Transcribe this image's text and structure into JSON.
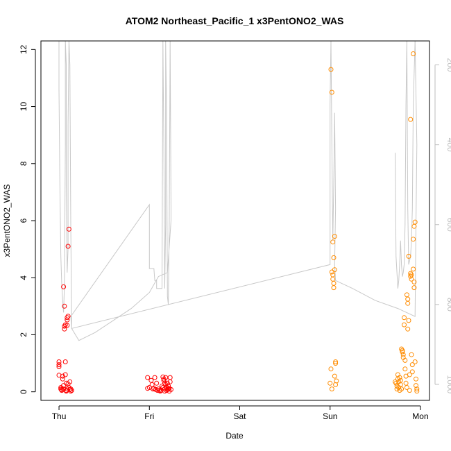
{
  "chart_data": {
    "type": "scatter",
    "title": "ATOM2 Northeast_Pacific_1 x3PentONO2_WAS",
    "xlabel": "Date",
    "ylabel": "x3PentONO2_WAS",
    "x_ticks": [
      "Thu",
      "Fri",
      "Sat",
      "Sun",
      "Mon"
    ],
    "y_ticks": [
      "0",
      "2",
      "4",
      "6",
      "8",
      "10",
      "12"
    ],
    "y_right_ticks": [
      "200",
      "400",
      "600",
      "800",
      "1000"
    ],
    "xlim_days": [
      -0.2,
      4.1
    ],
    "ylim": [
      -0.3,
      12.3
    ],
    "y_right_lim": [
      1040,
      140
    ],
    "y_right_reversed": true,
    "grid": false,
    "colors": {
      "series_1": "#ff0000",
      "series_2": "#ff8c00",
      "pressure_trace": "#c8c8c8",
      "right_axis": "#bdbdbd"
    },
    "series": [
      {
        "marker": "open-circle",
        "color": "#ff0000",
        "points": [
          [
            0.0,
            1.05
          ],
          [
            0.0,
            0.95
          ],
          [
            0.0,
            0.88
          ],
          [
            0.0,
            0.58
          ],
          [
            0.02,
            0.15
          ],
          [
            0.02,
            0.1
          ],
          [
            0.03,
            0.05
          ],
          [
            0.03,
            0.08
          ],
          [
            0.04,
            0.55
          ],
          [
            0.04,
            0.45
          ],
          [
            0.05,
            0.22
          ],
          [
            0.05,
            0.1
          ],
          [
            0.05,
            3.68
          ],
          [
            0.06,
            3.0
          ],
          [
            0.06,
            2.3
          ],
          [
            0.06,
            2.2
          ],
          [
            0.07,
            2.35
          ],
          [
            0.07,
            1.05
          ],
          [
            0.07,
            0.6
          ],
          [
            0.08,
            0.02
          ],
          [
            0.08,
            0.05
          ],
          [
            0.08,
            0.3
          ],
          [
            0.09,
            0.1
          ],
          [
            0.09,
            2.33
          ],
          [
            0.09,
            2.6
          ],
          [
            0.09,
            2.52
          ],
          [
            0.1,
            2.65
          ],
          [
            0.1,
            5.1
          ],
          [
            0.1,
            0.28
          ],
          [
            0.11,
            0.15
          ],
          [
            0.11,
            5.7
          ],
          [
            0.12,
            0.08
          ],
          [
            0.12,
            0.35
          ],
          [
            0.13,
            0.02
          ],
          [
            0.13,
            0.1
          ],
          [
            0.14,
            0.05
          ],
          [
            0.98,
            0.5
          ],
          [
            0.98,
            0.12
          ],
          [
            1.0,
            0.15
          ],
          [
            1.02,
            0.4
          ],
          [
            1.03,
            0.25
          ],
          [
            1.04,
            0.1
          ],
          [
            1.05,
            0.12
          ],
          [
            1.06,
            0.5
          ],
          [
            1.07,
            0.08
          ],
          [
            1.08,
            0.3
          ],
          [
            1.09,
            0.05
          ],
          [
            1.1,
            0.1
          ],
          [
            1.11,
            0.05
          ],
          [
            1.12,
            0.02
          ],
          [
            1.13,
            0.05
          ],
          [
            1.14,
            0.2
          ],
          [
            1.15,
            0.15
          ],
          [
            1.15,
            0.52
          ],
          [
            1.16,
            0.45
          ],
          [
            1.16,
            0.4
          ],
          [
            1.17,
            0.3
          ],
          [
            1.17,
            0.1
          ],
          [
            1.17,
            0.02
          ],
          [
            1.18,
            0.25
          ],
          [
            1.18,
            0.5
          ],
          [
            1.19,
            0.15
          ],
          [
            1.19,
            0.05
          ],
          [
            1.2,
            0.3
          ],
          [
            1.2,
            0.08
          ],
          [
            1.21,
            0.2
          ],
          [
            1.21,
            0.1
          ],
          [
            1.22,
            0.12
          ],
          [
            1.22,
            0.02
          ],
          [
            1.23,
            0.5
          ],
          [
            1.23,
            0.35
          ],
          [
            1.24,
            0.08
          ]
        ]
      },
      {
        "marker": "open-circle",
        "color": "#ff8c00",
        "points": [
          [
            3.01,
            11.3
          ],
          [
            3.02,
            10.5
          ],
          [
            3.01,
            0.8
          ],
          [
            3.0,
            0.3
          ],
          [
            3.02,
            0.1
          ],
          [
            3.03,
            5.25
          ],
          [
            3.04,
            4.7
          ],
          [
            3.02,
            4.2
          ],
          [
            3.03,
            4.1
          ],
          [
            3.03,
            3.95
          ],
          [
            3.04,
            3.8
          ],
          [
            3.04,
            3.65
          ],
          [
            3.05,
            4.28
          ],
          [
            3.05,
            5.45
          ],
          [
            3.06,
            1.05
          ],
          [
            3.06,
            1.0
          ],
          [
            3.05,
            0.55
          ],
          [
            3.06,
            0.25
          ],
          [
            3.07,
            0.38
          ],
          [
            3.72,
            0.35
          ],
          [
            3.73,
            0.3
          ],
          [
            3.74,
            0.2
          ],
          [
            3.74,
            0.1
          ],
          [
            3.75,
            0.6
          ],
          [
            3.75,
            0.45
          ],
          [
            3.76,
            0.35
          ],
          [
            3.76,
            0.15
          ],
          [
            3.77,
            0.05
          ],
          [
            3.77,
            0.5
          ],
          [
            3.78,
            0.4
          ],
          [
            3.78,
            0.25
          ],
          [
            3.79,
            0.1
          ],
          [
            3.79,
            1.5
          ],
          [
            3.8,
            1.45
          ],
          [
            3.8,
            1.4
          ],
          [
            3.81,
            1.3
          ],
          [
            3.81,
            1.2
          ],
          [
            3.82,
            2.6
          ],
          [
            3.82,
            2.35
          ],
          [
            3.83,
            1.1
          ],
          [
            3.83,
            0.8
          ],
          [
            3.84,
            0.55
          ],
          [
            3.84,
            0.3
          ],
          [
            3.85,
            0.15
          ],
          [
            3.85,
            3.4
          ],
          [
            3.86,
            3.25
          ],
          [
            3.86,
            3.1
          ],
          [
            3.86,
            2.2
          ],
          [
            3.87,
            4.75
          ],
          [
            3.87,
            2.5
          ],
          [
            3.88,
            0.05
          ],
          [
            3.88,
            0.6
          ],
          [
            3.89,
            9.55
          ],
          [
            3.89,
            4.15
          ],
          [
            3.89,
            4.05
          ],
          [
            3.9,
            4.1
          ],
          [
            3.9,
            3.95
          ],
          [
            3.9,
            1.3
          ],
          [
            3.91,
            0.95
          ],
          [
            3.91,
            0.7
          ],
          [
            3.92,
            11.85
          ],
          [
            3.92,
            5.35
          ],
          [
            3.92,
            4.3
          ],
          [
            3.93,
            5.8
          ],
          [
            3.93,
            3.85
          ],
          [
            3.93,
            3.65
          ],
          [
            3.94,
            5.95
          ],
          [
            3.94,
            1.05
          ],
          [
            3.95,
            0.45
          ],
          [
            3.95,
            0.22
          ],
          [
            3.96,
            0.1
          ],
          [
            3.96,
            0.02
          ]
        ]
      }
    ],
    "pressure_trace": [
      [
        0.0,
        140
      ],
      [
        0.0,
        260
      ],
      [
        0.01,
        500
      ],
      [
        0.02,
        680
      ],
      [
        0.03,
        750
      ],
      [
        0.04,
        790
      ],
      [
        0.05,
        820
      ],
      [
        0.06,
        750
      ],
      [
        0.07,
        400
      ],
      [
        0.07,
        140
      ],
      [
        0.08,
        200
      ],
      [
        0.08,
        500
      ],
      [
        0.09,
        720
      ],
      [
        0.1,
        660
      ],
      [
        0.1,
        350
      ],
      [
        0.11,
        140
      ],
      [
        0.12,
        200
      ],
      [
        0.13,
        600
      ],
      [
        0.14,
        860
      ],
      [
        0.13,
        830
      ],
      [
        1.0,
        550
      ],
      [
        1.0,
        710
      ],
      [
        1.05,
        710
      ],
      [
        1.06,
        740
      ],
      [
        1.08,
        740
      ],
      [
        1.08,
        760
      ],
      [
        1.09,
        760
      ],
      [
        1.12,
        760
      ],
      [
        1.14,
        760
      ],
      [
        1.15,
        140
      ],
      [
        1.16,
        400
      ],
      [
        1.17,
        760
      ],
      [
        1.18,
        600
      ],
      [
        1.18,
        140
      ],
      [
        1.19,
        300
      ],
      [
        1.2,
        780
      ],
      [
        1.21,
        800
      ],
      [
        1.22,
        600
      ],
      [
        1.23,
        140
      ],
      [
        1.24,
        560
      ],
      [
        1.24,
        590
      ],
      [
        1.2,
        720
      ],
      [
        1.1,
        730
      ],
      [
        1.0,
        770
      ],
      [
        0.8,
        810
      ],
      [
        0.6,
        840
      ],
      [
        0.4,
        870
      ],
      [
        0.22,
        890
      ],
      [
        0.14,
        860
      ],
      [
        3.0,
        700
      ],
      [
        3.0,
        300
      ],
      [
        3.01,
        140
      ],
      [
        3.02,
        400
      ],
      [
        3.03,
        640
      ],
      [
        3.04,
        500
      ],
      [
        3.05,
        320
      ],
      [
        3.06,
        560
      ],
      [
        3.05,
        700
      ],
      [
        3.06,
        740
      ],
      [
        3.25,
        760
      ],
      [
        3.5,
        790
      ],
      [
        3.75,
        810
      ],
      [
        3.94,
        830
      ],
      [
        3.95,
        600
      ],
      [
        3.96,
        400
      ],
      [
        3.94,
        140
      ],
      [
        3.92,
        300
      ],
      [
        3.91,
        560
      ],
      [
        3.9,
        640
      ],
      [
        3.89,
        680
      ],
      [
        3.87,
        700
      ],
      [
        3.86,
        560
      ],
      [
        3.85,
        140
      ],
      [
        3.84,
        300
      ],
      [
        3.83,
        600
      ],
      [
        3.82,
        700
      ],
      [
        3.81,
        720
      ],
      [
        3.8,
        730
      ],
      [
        3.79,
        700
      ],
      [
        3.78,
        640
      ],
      [
        3.77,
        700
      ],
      [
        3.76,
        740
      ],
      [
        3.75,
        760
      ],
      [
        3.74,
        720
      ],
      [
        3.73,
        680
      ],
      [
        3.72,
        420
      ]
    ]
  }
}
